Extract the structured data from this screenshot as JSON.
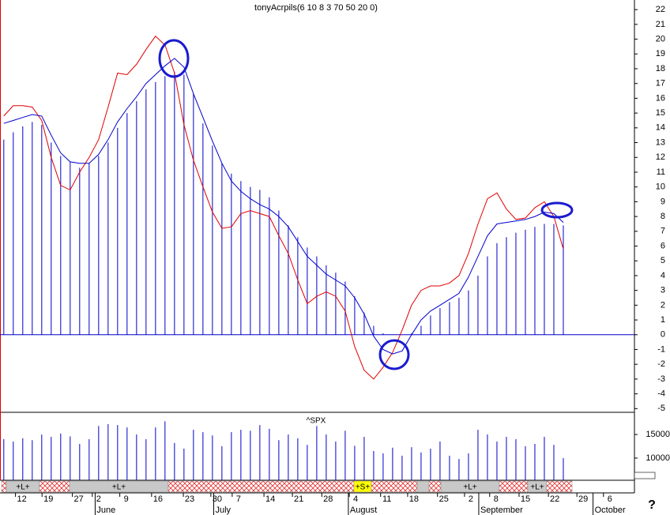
{
  "chart_data": {
    "type": "indicator",
    "title": "tonyAcrpils(6 10 8 3 70 50 20 0)",
    "colors": {
      "fast": "#e00000",
      "slow": "#0000cc",
      "bars": "#0000cc",
      "volume": "#0000cc"
    },
    "xlim": [
      -0.4,
      66.5
    ],
    "ylim": [
      -5.25,
      22.65
    ],
    "yticks": [
      -5,
      -4,
      -3,
      -2,
      -1,
      0,
      1,
      2,
      3,
      4,
      5,
      6,
      7,
      8,
      9,
      10,
      11,
      12,
      13,
      14,
      15,
      16,
      17,
      18,
      19,
      20,
      21,
      22
    ],
    "xticks": [
      {
        "value": 1.9,
        "label": "12"
      },
      {
        "value": 4.7,
        "label": "19"
      },
      {
        "value": 7.9,
        "label": "27"
      },
      {
        "value": 10,
        "label": "2"
      },
      {
        "value": 12.9,
        "label": "9"
      },
      {
        "value": 16.25,
        "label": "16"
      },
      {
        "value": 19.6,
        "label": "23"
      },
      {
        "value": 22.5,
        "label": "30"
      },
      {
        "value": 24.75,
        "label": "7"
      },
      {
        "value": 28.1,
        "label": "14"
      },
      {
        "value": 31.1,
        "label": "21"
      },
      {
        "value": 34.2,
        "label": "28"
      },
      {
        "value": 37.1,
        "label": "4"
      },
      {
        "value": 40.4,
        "label": "11"
      },
      {
        "value": 43.25,
        "label": "18"
      },
      {
        "value": 46.4,
        "label": "25"
      },
      {
        "value": 49.25,
        "label": "2"
      },
      {
        "value": 51.9,
        "label": "8"
      },
      {
        "value": 55,
        "label": "15"
      },
      {
        "value": 58.1,
        "label": "22"
      },
      {
        "value": 61.1,
        "label": "29"
      },
      {
        "value": 63.9,
        "label": "6"
      }
    ],
    "month_ticks": [
      {
        "value": 10.8,
        "label": "June"
      },
      {
        "value": 23.3,
        "label": "July"
      },
      {
        "value": 37.5,
        "label": "August"
      },
      {
        "value": 51.25,
        "label": "September"
      },
      {
        "value": 63.3,
        "label": "October"
      }
    ],
    "bars": [
      13.2,
      13.7,
      14.1,
      14.4,
      14.2,
      13.0,
      12.1,
      11.7,
      11.3,
      11.6,
      12.1,
      13.0,
      14.0,
      15.0,
      15.8,
      16.6,
      17.1,
      17.5,
      17.8,
      17.6,
      16.3,
      14.3,
      12.8,
      11.6,
      10.9,
      10.4,
      10.0,
      9.8,
      9.3,
      8.4,
      7.4,
      6.6,
      5.9,
      5.3,
      4.7,
      4.2,
      3.6,
      2.6,
      1.5,
      0.6,
      0.1,
      0,
      0,
      0.1,
      0.6,
      1.3,
      1.8,
      2.2,
      2.5,
      3.0,
      4.0,
      5.3,
      6.2,
      6.6,
      6.9,
      7.1,
      7.3,
      7.5,
      7.5,
      7.4
    ],
    "series": [
      {
        "color": "#e00000",
        "values": [
          14.8,
          15.5,
          15.5,
          15.4,
          14.5,
          12,
          10.1,
          9.8,
          11.0,
          12.0,
          13.2,
          15.4,
          17.7,
          17.6,
          18.3,
          19.3,
          20.2,
          19.6,
          17.7,
          14.2,
          11.8,
          10.0,
          8.3,
          7.2,
          7.3,
          8.2,
          8.4,
          8.2,
          8.0,
          6.7,
          5.5,
          3.7,
          2.1,
          2.6,
          2.9,
          2.6,
          1.6,
          -0.8,
          -2.4,
          -3.0,
          -2.2,
          -1.2,
          0.3,
          2.0,
          3.0,
          3.3,
          3.3,
          3.5,
          4.0,
          5.5,
          7.5,
          9.2,
          9.6,
          8.5,
          7.8,
          7.9,
          8.6,
          9.0,
          8.0,
          5.8
        ]
      },
      {
        "color": "#0000cc",
        "values": [
          14.3,
          14.5,
          14.7,
          14.9,
          14.8,
          13.5,
          12.3,
          11.7,
          11.6,
          11.6,
          12.2,
          13.2,
          14.4,
          15.3,
          16.1,
          17.0,
          17.6,
          18.2,
          18.7,
          18.1,
          16.3,
          14.7,
          13.1,
          11.6,
          10.4,
          9.7,
          9.2,
          8.8,
          8.5,
          8.0,
          7.3,
          6.3,
          5.3,
          4.7,
          4.1,
          3.7,
          3.3,
          2.5,
          1.4,
          -0.1,
          -1.0,
          -1.3,
          -1.1,
          0.0,
          1.0,
          1.6,
          2.0,
          2.4,
          2.8,
          3.9,
          5.3,
          6.7,
          7.5,
          7.6,
          7.7,
          7.8,
          8.0,
          8.3,
          8.2,
          7.6
        ]
      }
    ],
    "volume": {
      "title": "^SPX",
      "ylim": [
        5300,
        19700
      ],
      "yticks": [
        10000,
        15000
      ],
      "values": [
        14000,
        13500,
        14200,
        13800,
        15000,
        14500,
        15200,
        14600,
        13000,
        14000,
        16800,
        17200,
        17000,
        16500,
        15000,
        14000,
        16500,
        17800,
        13200,
        12000,
        16000,
        15500,
        14800,
        12500,
        15500,
        16000,
        15800,
        17000,
        16200,
        13800,
        15000,
        14200,
        12800,
        16800,
        15000,
        13500,
        15800,
        12600,
        14500,
        11500,
        11000,
        12200,
        10500,
        12300,
        11200,
        12000,
        13500,
        10500,
        9800,
        11000,
        16000,
        15000,
        13500,
        14500,
        14000,
        12500,
        13000,
        14500,
        12800,
        10000
      ]
    },
    "signal_labels": [
      "+L+",
      "+L+",
      "+S+",
      "+L+",
      "+L+"
    ],
    "help": "?"
  }
}
